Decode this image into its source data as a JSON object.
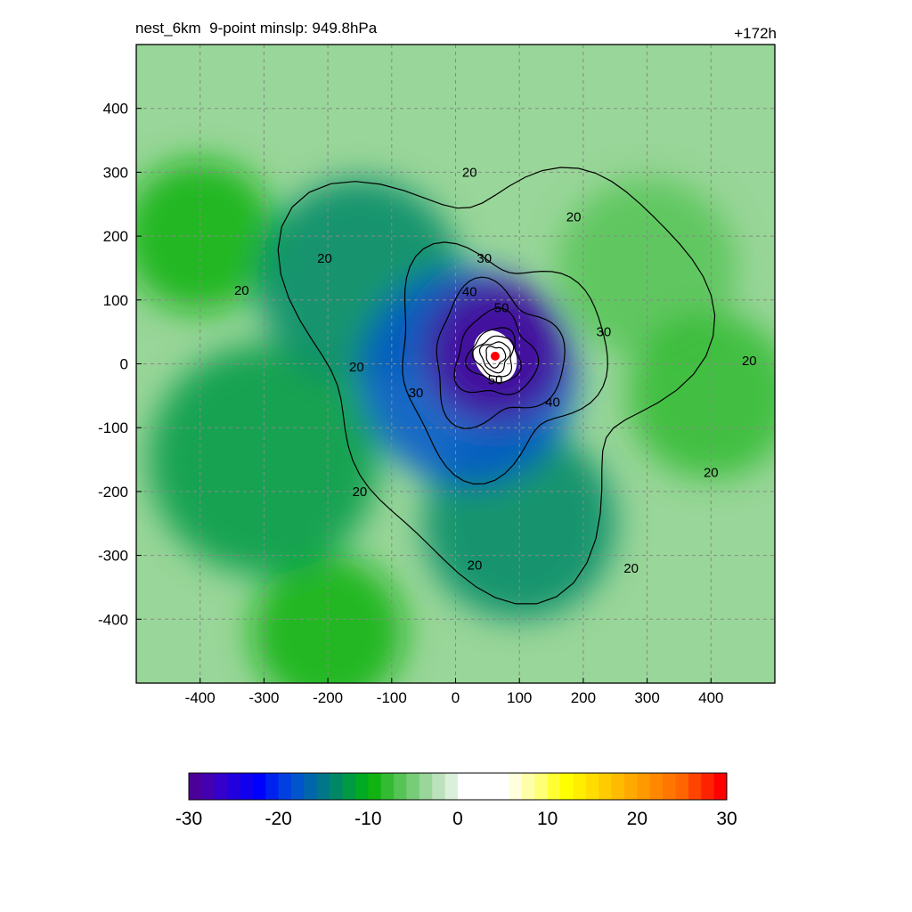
{
  "header": {
    "left_title": "nest_6km  9-point minslp: 949.8hPa",
    "right_title": "+172h"
  },
  "chart_data": {
    "type": "heatmap",
    "title": "nest_6km  9-point minslp: 949.8hPa",
    "forecast_time": "+172h",
    "xlabel": "",
    "ylabel": "",
    "xlim": [
      -500,
      500
    ],
    "ylim": [
      -500,
      500
    ],
    "x_ticks": [
      -400,
      -300,
      -200,
      -100,
      0,
      100,
      200,
      300,
      400
    ],
    "y_ticks": [
      400,
      300,
      200,
      100,
      0,
      -100,
      -200,
      -300,
      -400
    ],
    "grid": true,
    "storm_center": {
      "x": 62,
      "y": 12
    },
    "contour_levels": [
      20,
      30,
      40,
      50
    ],
    "contour_labels": [
      {
        "text": "20",
        "x": 22,
        "y": 300
      },
      {
        "text": "20",
        "x": 185,
        "y": 230
      },
      {
        "text": "20",
        "x": -205,
        "y": 165
      },
      {
        "text": "20",
        "x": -335,
        "y": 115
      },
      {
        "text": "20",
        "x": -155,
        "y": -5
      },
      {
        "text": "20",
        "x": -150,
        "y": -200
      },
      {
        "text": "20",
        "x": 30,
        "y": -315
      },
      {
        "text": "20",
        "x": 275,
        "y": -320
      },
      {
        "text": "20",
        "x": 400,
        "y": -170
      },
      {
        "text": "20",
        "x": 460,
        "y": 5
      },
      {
        "text": "30",
        "x": 45,
        "y": 165
      },
      {
        "text": "30",
        "x": 232,
        "y": 50
      },
      {
        "text": "30",
        "x": -62,
        "y": -45
      },
      {
        "text": "40",
        "x": 22,
        "y": 113
      },
      {
        "text": "40",
        "x": 152,
        "y": -60
      },
      {
        "text": "50",
        "x": 72,
        "y": 88
      },
      {
        "text": "50",
        "x": 62,
        "y": -25
      }
    ],
    "field": {
      "center": [
        62,
        12
      ],
      "blobs": [
        {
          "x": 62,
          "y": 20,
          "r": 110,
          "v": -30
        },
        {
          "x": 20,
          "y": -20,
          "r": 170,
          "v": -18
        },
        {
          "x": -150,
          "y": 130,
          "r": 160,
          "v": -14
        },
        {
          "x": -300,
          "y": -150,
          "r": 180,
          "v": -12
        },
        {
          "x": 100,
          "y": -250,
          "r": 150,
          "v": -14
        },
        {
          "x": -400,
          "y": 200,
          "r": 120,
          "v": -9
        },
        {
          "x": 300,
          "y": 150,
          "r": 140,
          "v": -7
        },
        {
          "x": 400,
          "y": -50,
          "r": 130,
          "v": -8
        },
        {
          "x": -200,
          "y": -420,
          "r": 120,
          "v": -9
        }
      ]
    },
    "colorbar": {
      "min": -30,
      "max": 30,
      "tick_labels": [
        "-30",
        "-20",
        "-10",
        "0",
        "10",
        "20",
        "30"
      ],
      "tick_values": [
        -30,
        -20,
        -10,
        0,
        10,
        20,
        30
      ],
      "colors": [
        "#4a0099",
        "#4400b0",
        "#3300cc",
        "#2200dd",
        "#1100ee",
        "#0000ff",
        "#0022f0",
        "#0040e0",
        "#0055cc",
        "#0066aa",
        "#007788",
        "#008866",
        "#009944",
        "#00aa22",
        "#11b311",
        "#33bb33",
        "#55c455",
        "#77cc77",
        "#99d699",
        "#bbe2bb",
        "#dbf0db",
        "#ffffff",
        "#ffffff",
        "#ffffff",
        "#ffffff",
        "#ffffdd",
        "#ffffaa",
        "#ffff77",
        "#ffff33",
        "#ffff00",
        "#ffee00",
        "#ffdd00",
        "#ffcc00",
        "#ffbb00",
        "#ffaa00",
        "#ff9900",
        "#ff8800",
        "#ff7700",
        "#ff6600",
        "#ff4400",
        "#ff2200",
        "#ff0000"
      ]
    }
  }
}
